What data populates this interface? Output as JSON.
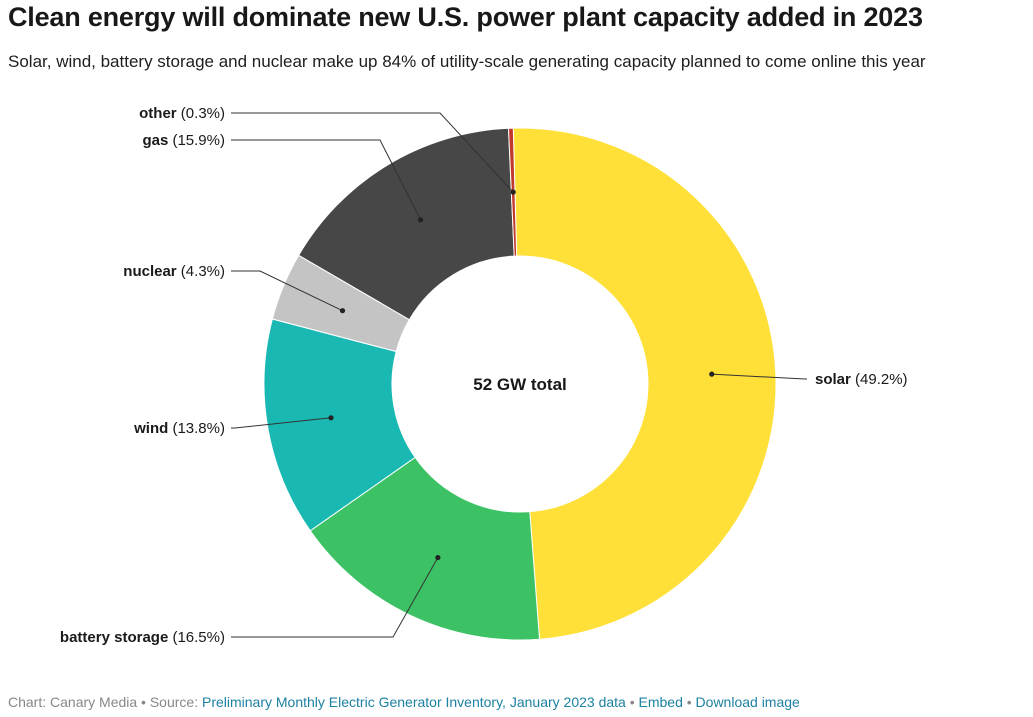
{
  "header": {
    "title": "Clean energy will dominate new U.S. power plant capacity added in 2023",
    "subtitle": "Solar, wind, battery storage and nuclear make up 84% of utility-scale generating capacity planned to come online this year"
  },
  "chart_data": {
    "type": "pie",
    "variant": "donut",
    "center_label": "52 GW total",
    "slices": [
      {
        "name": "solar",
        "value": 49.2,
        "display": "(49.2%)",
        "color": "#fee038"
      },
      {
        "name": "battery storage",
        "value": 16.5,
        "display": "(16.5%)",
        "color": "#3cc265"
      },
      {
        "name": "wind",
        "value": 13.8,
        "display": "(13.8%)",
        "color": "#19b8b3"
      },
      {
        "name": "nuclear",
        "value": 4.3,
        "display": "(4.3%)",
        "color": "#c4c4c4"
      },
      {
        "name": "gas",
        "value": 15.9,
        "display": "(15.9%)",
        "color": "#474747"
      },
      {
        "name": "other",
        "value": 0.3,
        "display": "(0.3%)",
        "color": "#c0392b"
      }
    ]
  },
  "footer": {
    "prefix": "Chart: Canary Media • Source: ",
    "source_link": "Preliminary Monthly Electric Generator Inventory, January 2023 data",
    "sep1": " • ",
    "embed_link": "Embed",
    "sep2": " • ",
    "download_link": "Download image"
  }
}
